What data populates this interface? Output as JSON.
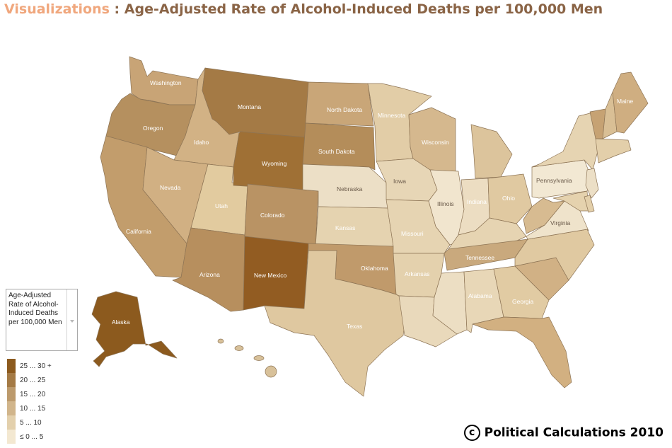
{
  "title": {
    "brand": "Visualizations",
    "separator": " : ",
    "main": "Age-Adjusted Rate of Alcohol-Induced Deaths per 100,000 Men"
  },
  "legend": {
    "heading": "Age-Adjusted Rate of Alcohol-Induced Deaths per 100,000 Men",
    "bins": [
      {
        "label": "25 ... 30 +",
        "color": "#8c5a1e"
      },
      {
        "label": "20 ... 25",
        "color": "#a47a45"
      },
      {
        "label": "15 ... 20",
        "color": "#bc9a6c"
      },
      {
        "label": "10 ... 15",
        "color": "#d1b58b"
      },
      {
        "label": "5 ... 10",
        "color": "#e3d0ac"
      },
      {
        "label": "≤ 0 ... 5",
        "color": "#f3e8d1"
      }
    ]
  },
  "credit": {
    "symbol": "c",
    "text": "Political Calculations 2010"
  },
  "states": {
    "washington": {
      "label": "Washington",
      "color": "#c8a476"
    },
    "oregon": {
      "label": "Oregon",
      "color": "#b5905f"
    },
    "california": {
      "label": "California",
      "color": "#c29d6c"
    },
    "idaho": {
      "label": "Idaho",
      "color": "#d2b285"
    },
    "nevada": {
      "label": "Nevada",
      "color": "#d1b083"
    },
    "utah": {
      "label": "Utah",
      "color": "#e2cb9f"
    },
    "arizona": {
      "label": "Arizona",
      "color": "#b78f5e"
    },
    "montana": {
      "label": "Montana",
      "color": "#a47a45"
    },
    "wyoming": {
      "label": "Wyoming",
      "color": "#9f7035"
    },
    "colorado": {
      "label": "Colorado",
      "color": "#b99364"
    },
    "new_mexico": {
      "label": "New Mexico",
      "color": "#925c22"
    },
    "north_dakota": {
      "label": "North Dakota",
      "color": "#c9a678"
    },
    "south_dakota": {
      "label": "South Dakota",
      "color": "#b48d5a"
    },
    "nebraska": {
      "label": "Nebraska",
      "color": "#ecdfc6"
    },
    "kansas": {
      "label": "Kansas",
      "color": "#e5d3b0"
    },
    "oklahoma": {
      "label": "Oklahoma",
      "color": "#c09a6b"
    },
    "texas": {
      "label": "Texas",
      "color": "#dfc8a0"
    },
    "minnesota": {
      "label": "Minnesota",
      "color": "#e2cda7"
    },
    "iowa": {
      "label": "Iowa",
      "color": "#e7d6b6"
    },
    "missouri": {
      "label": "Missouri",
      "color": "#e6d4b2"
    },
    "arkansas": {
      "label": "Arkansas",
      "color": "#e4d1ad"
    },
    "louisiana": {
      "label": "",
      "color": "#e9d9bb"
    },
    "wisconsin": {
      "label": "Wisconsin",
      "color": "#d5b88e"
    },
    "illinois": {
      "label": "Illinois",
      "color": "#f1e5ce"
    },
    "michigan": {
      "label": "",
      "color": "#dcc49c"
    },
    "indiana": {
      "label": "Indiana",
      "color": "#ecddc2"
    },
    "ohio": {
      "label": "Ohio",
      "color": "#e0c9a1"
    },
    "kentucky": {
      "label": "",
      "color": "#e6d4b2"
    },
    "tennessee": {
      "label": "Tennessee",
      "color": "#c9a97d"
    },
    "mississippi": {
      "label": "",
      "color": "#ecdec3"
    },
    "alabama": {
      "label": "Alabama",
      "color": "#e8d7b7"
    },
    "georgia": {
      "label": "Georgia",
      "color": "#e1cba3"
    },
    "florida": {
      "label": "",
      "color": "#d2b081"
    },
    "south_carolina": {
      "label": "",
      "color": "#d1b185"
    },
    "north_carolina": {
      "label": "",
      "color": "#e0c9a1"
    },
    "virginia": {
      "label": "Virginia",
      "color": "#efe3cb"
    },
    "west_virginia": {
      "label": "",
      "color": "#d7bb91"
    },
    "pennsylvania": {
      "label": "Pennsylvania",
      "color": "#f2e8d3"
    },
    "new_york": {
      "label": "",
      "color": "#e6d4b2"
    },
    "maryland": {
      "label": "",
      "color": "#e5d2ae"
    },
    "new_jersey": {
      "label": "",
      "color": "#ecdfc6"
    },
    "delaware": {
      "label": "",
      "color": "#e3cfaa"
    },
    "new_england_south": {
      "label": "",
      "color": "#e3cfaa"
    },
    "vermont": {
      "label": "",
      "color": "#c6a273"
    },
    "new_hampshire": {
      "label": "",
      "color": "#d9bf95"
    },
    "maine": {
      "label": "Maine",
      "color": "#cfae81"
    },
    "alaska": {
      "label": "Alaska",
      "color": "#8c5a1e"
    },
    "hawaii": {
      "label": "",
      "color": "#d8c19a"
    }
  }
}
